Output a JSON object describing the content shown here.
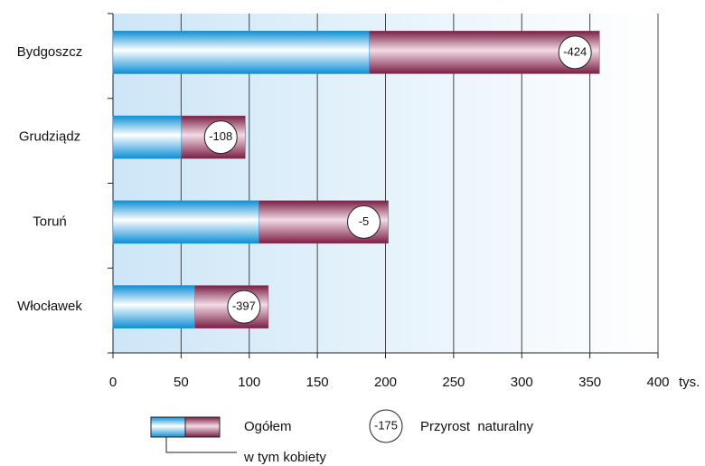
{
  "chart_data": {
    "type": "bar",
    "categories": [
      "Bydgoszcz",
      "Grudziądz",
      "Toruń",
      "Włocławek"
    ],
    "series": [
      {
        "name": "Ogółem",
        "color": "#8b2f55",
        "values": [
          357,
          97,
          202,
          114
        ]
      },
      {
        "name": "w tym kobiety",
        "color": "#1ba1e2",
        "values": [
          188,
          50,
          107,
          60
        ]
      }
    ],
    "natural_increase": {
      "name": "Przyrost  naturalny",
      "values": [
        -424,
        -108,
        -5,
        -397
      ],
      "legend_example": "-175"
    },
    "xlim": [
      0,
      400
    ],
    "xticks": [
      0,
      50,
      100,
      150,
      200,
      250,
      300,
      350,
      400
    ],
    "x_unit": "tys.",
    "grid": true
  }
}
